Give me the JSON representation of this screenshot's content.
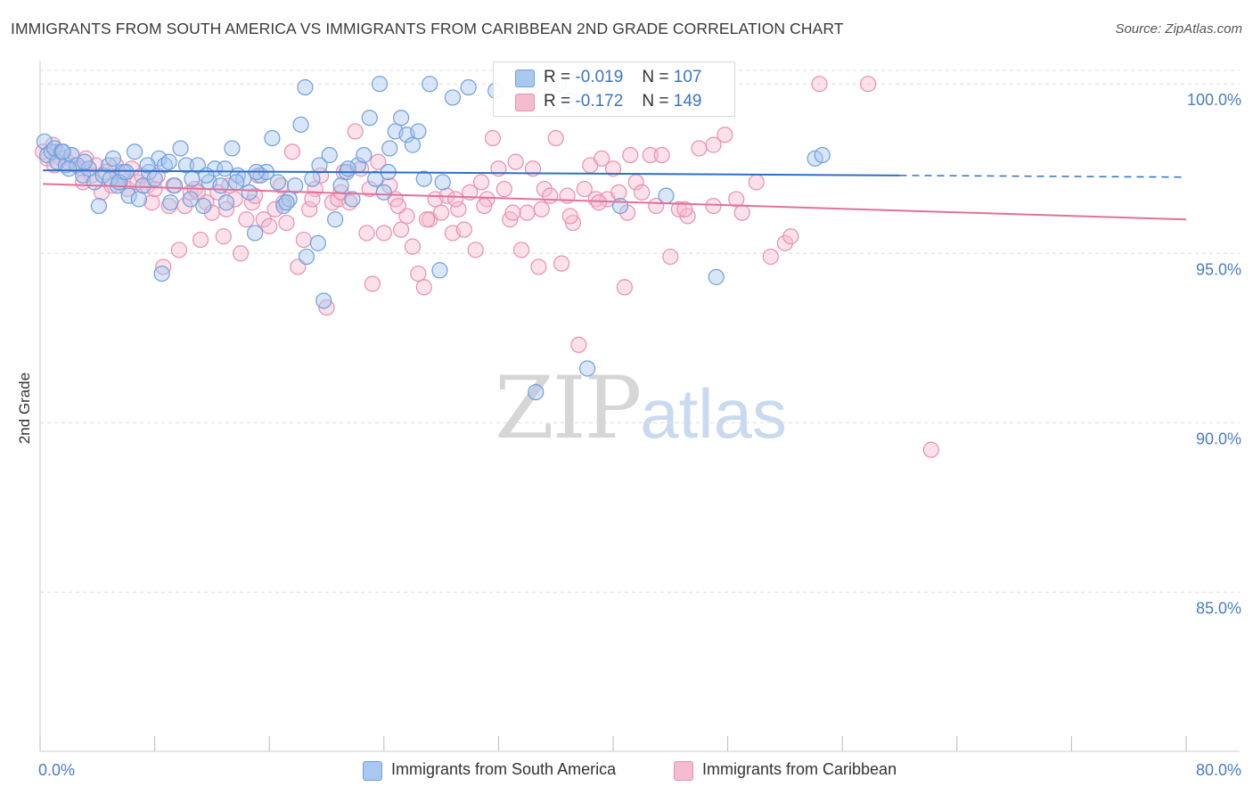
{
  "title": "IMMIGRANTS FROM SOUTH AMERICA VS IMMIGRANTS FROM CARIBBEAN 2ND GRADE CORRELATION CHART",
  "source": "Source: ZipAtlas.com",
  "watermark": {
    "zip": "ZIP",
    "atlas": "atlas"
  },
  "legend": {
    "series1": {
      "label": "Immigrants from South America",
      "r_label": "R =",
      "r_value": "-0.019",
      "n_label": "N =",
      "n_value": "107"
    },
    "series2": {
      "label": "Immigrants from Caribbean",
      "r_label": "R =",
      "r_value": "-0.172",
      "n_label": "N =",
      "n_value": "149"
    }
  },
  "colors": {
    "series1_fill": "#a9c8ef",
    "series1_stroke": "#6f9fdc",
    "series1_line": "#2f6fc9",
    "series2_fill": "#f5bcd0",
    "series2_stroke": "#ea8fb0",
    "series2_line": "#e2719a",
    "axis_text": "#4a7cc7",
    "grid": "#dcdcdc"
  },
  "chart_data": {
    "type": "scatter",
    "title": "IMMIGRANTS FROM SOUTH AMERICA VS IMMIGRANTS FROM CARIBBEAN 2ND GRADE CORRELATION CHART",
    "xlabel": "",
    "ylabel": "2nd Grade",
    "xlim": [
      0,
      80
    ],
    "ylim": [
      80.3,
      100.9
    ],
    "x_tick_labels": [
      "0.0%",
      "80.0%"
    ],
    "y_ticks": [
      85,
      90,
      95,
      100
    ],
    "y_tick_labels": [
      "85.0%",
      "90.0%",
      "95.0%",
      "100.0%"
    ],
    "grid": true,
    "legend_position": "top-center",
    "series": [
      {
        "name": "Immigrants from South America",
        "trend": {
          "x0": 0.2,
          "y0": 97.45,
          "x1": 60,
          "y1": 97.3,
          "dash_from": 60,
          "dash_to": 80,
          "dash_end_y": 97.25
        },
        "points": [
          [
            0.3,
            98.3
          ],
          [
            0.5,
            97.9
          ],
          [
            0.8,
            98.0
          ],
          [
            1.0,
            98.1
          ],
          [
            1.2,
            97.7
          ],
          [
            1.5,
            98.0
          ],
          [
            1.8,
            97.6
          ],
          [
            2.2,
            97.9
          ],
          [
            2.6,
            97.6
          ],
          [
            3.0,
            97.3
          ],
          [
            3.4,
            97.5
          ],
          [
            3.8,
            97.1
          ],
          [
            4.1,
            96.4
          ],
          [
            4.4,
            97.3
          ],
          [
            4.8,
            97.6
          ],
          [
            5.1,
            97.8
          ],
          [
            5.4,
            97.0
          ],
          [
            5.8,
            97.4
          ],
          [
            6.2,
            96.7
          ],
          [
            6.6,
            98.0
          ],
          [
            6.9,
            96.6
          ],
          [
            7.2,
            97.0
          ],
          [
            7.6,
            97.4
          ],
          [
            8.0,
            97.2
          ],
          [
            8.3,
            97.8
          ],
          [
            8.7,
            97.6
          ],
          [
            9.1,
            96.5
          ],
          [
            9.4,
            97.0
          ],
          [
            9.8,
            98.1
          ],
          [
            10.2,
            97.6
          ],
          [
            10.6,
            97.2
          ],
          [
            11.0,
            97.6
          ],
          [
            11.4,
            96.4
          ],
          [
            11.8,
            97.1
          ],
          [
            12.2,
            97.5
          ],
          [
            12.6,
            97.0
          ],
          [
            13.0,
            96.5
          ],
          [
            13.4,
            98.1
          ],
          [
            13.8,
            97.3
          ],
          [
            14.2,
            97.2
          ],
          [
            14.6,
            96.8
          ],
          [
            15.0,
            95.6
          ],
          [
            15.4,
            97.3
          ],
          [
            15.8,
            97.4
          ],
          [
            16.2,
            98.4
          ],
          [
            16.6,
            97.1
          ],
          [
            17.0,
            96.4
          ],
          [
            17.4,
            96.6
          ],
          [
            17.8,
            97.0
          ],
          [
            18.2,
            98.8
          ],
          [
            18.6,
            94.9
          ],
          [
            19.0,
            97.2
          ],
          [
            19.4,
            95.3
          ],
          [
            19.8,
            93.6
          ],
          [
            20.2,
            97.9
          ],
          [
            20.6,
            96.0
          ],
          [
            21.0,
            97.0
          ],
          [
            21.4,
            97.4
          ],
          [
            21.8,
            96.6
          ],
          [
            22.2,
            97.6
          ],
          [
            22.6,
            97.9
          ],
          [
            23.0,
            99.0
          ],
          [
            23.4,
            97.2
          ],
          [
            24.0,
            96.8
          ],
          [
            24.4,
            98.1
          ],
          [
            24.8,
            98.6
          ],
          [
            25.2,
            99.0
          ],
          [
            25.6,
            98.5
          ],
          [
            26.0,
            98.2
          ],
          [
            26.4,
            98.6
          ],
          [
            18.5,
            99.9
          ],
          [
            23.7,
            100.0
          ],
          [
            27.2,
            100.0
          ],
          [
            28.8,
            99.6
          ],
          [
            29.9,
            99.9
          ],
          [
            31.8,
            99.8
          ],
          [
            34.4,
            99.9
          ],
          [
            36.2,
            100.0
          ],
          [
            37.0,
            99.5
          ],
          [
            8.5,
            94.4
          ],
          [
            27.9,
            94.5
          ],
          [
            34.6,
            90.9
          ],
          [
            38.2,
            91.6
          ],
          [
            40.5,
            96.4
          ],
          [
            43.7,
            96.7
          ],
          [
            47.2,
            94.3
          ],
          [
            54.1,
            97.8
          ],
          [
            54.6,
            97.9
          ],
          [
            2.0,
            97.5
          ],
          [
            4.9,
            97.2
          ],
          [
            7.5,
            97.6
          ],
          [
            10.5,
            96.6
          ],
          [
            12.9,
            97.5
          ],
          [
            15.1,
            97.4
          ],
          [
            17.2,
            96.5
          ],
          [
            19.5,
            97.6
          ],
          [
            21.5,
            97.5
          ],
          [
            24.3,
            97.4
          ],
          [
            26.8,
            97.2
          ],
          [
            28.1,
            97.1
          ],
          [
            1.6,
            98.0
          ],
          [
            3.1,
            97.7
          ],
          [
            5.5,
            97.1
          ],
          [
            6.0,
            97.4
          ],
          [
            9.0,
            97.7
          ],
          [
            11.6,
            97.3
          ],
          [
            13.7,
            97.1
          ]
        ]
      },
      {
        "name": "Immigrants from Caribbean",
        "trend": {
          "x0": 0.2,
          "y0": 97.05,
          "x1": 80,
          "y1": 96.0
        },
        "points": [
          [
            0.2,
            98.0
          ],
          [
            0.5,
            97.8
          ],
          [
            0.9,
            98.2
          ],
          [
            1.2,
            98.0
          ],
          [
            1.5,
            97.8
          ],
          [
            1.9,
            97.7
          ],
          [
            2.2,
            97.9
          ],
          [
            2.5,
            97.6
          ],
          [
            2.9,
            97.5
          ],
          [
            3.2,
            97.8
          ],
          [
            3.6,
            97.3
          ],
          [
            3.9,
            97.6
          ],
          [
            4.3,
            96.8
          ],
          [
            4.6,
            97.4
          ],
          [
            5.0,
            97.0
          ],
          [
            5.3,
            97.6
          ],
          [
            5.7,
            97.3
          ],
          [
            6.1,
            96.9
          ],
          [
            6.4,
            97.5
          ],
          [
            6.8,
            97.1
          ],
          [
            7.1,
            97.3
          ],
          [
            7.5,
            97.0
          ],
          [
            7.8,
            96.5
          ],
          [
            8.2,
            97.3
          ],
          [
            8.6,
            94.6
          ],
          [
            9.0,
            96.4
          ],
          [
            9.3,
            97.0
          ],
          [
            9.7,
            95.1
          ],
          [
            10.1,
            96.4
          ],
          [
            10.5,
            96.8
          ],
          [
            10.8,
            96.9
          ],
          [
            11.2,
            95.4
          ],
          [
            11.6,
            96.5
          ],
          [
            12.0,
            96.2
          ],
          [
            12.4,
            96.8
          ],
          [
            12.8,
            95.5
          ],
          [
            13.2,
            97.0
          ],
          [
            13.6,
            96.6
          ],
          [
            14.0,
            95.0
          ],
          [
            14.4,
            96.0
          ],
          [
            14.8,
            96.5
          ],
          [
            15.2,
            97.3
          ],
          [
            15.6,
            96.0
          ],
          [
            16.0,
            95.8
          ],
          [
            16.4,
            96.3
          ],
          [
            16.8,
            97.0
          ],
          [
            17.2,
            95.9
          ],
          [
            17.6,
            98.0
          ],
          [
            18.0,
            94.6
          ],
          [
            18.4,
            95.4
          ],
          [
            18.8,
            96.3
          ],
          [
            19.2,
            96.9
          ],
          [
            19.6,
            97.3
          ],
          [
            20.0,
            93.4
          ],
          [
            20.4,
            96.5
          ],
          [
            20.8,
            96.6
          ],
          [
            21.2,
            97.4
          ],
          [
            21.6,
            96.5
          ],
          [
            22.0,
            98.6
          ],
          [
            22.4,
            97.5
          ],
          [
            22.8,
            95.6
          ],
          [
            23.2,
            94.1
          ],
          [
            23.6,
            97.7
          ],
          [
            24.0,
            95.6
          ],
          [
            24.4,
            97.0
          ],
          [
            24.8,
            96.6
          ],
          [
            25.2,
            95.7
          ],
          [
            25.6,
            96.1
          ],
          [
            26.0,
            95.2
          ],
          [
            26.4,
            94.4
          ],
          [
            26.8,
            94.0
          ],
          [
            27.2,
            96.0
          ],
          [
            27.6,
            96.6
          ],
          [
            28.0,
            96.2
          ],
          [
            28.4,
            96.7
          ],
          [
            28.8,
            95.6
          ],
          [
            29.2,
            96.3
          ],
          [
            29.6,
            95.7
          ],
          [
            30.0,
            96.8
          ],
          [
            30.4,
            95.1
          ],
          [
            30.8,
            97.1
          ],
          [
            31.2,
            96.6
          ],
          [
            31.6,
            98.4
          ],
          [
            32.0,
            97.5
          ],
          [
            32.4,
            96.9
          ],
          [
            32.8,
            96.0
          ],
          [
            33.2,
            97.7
          ],
          [
            33.6,
            95.1
          ],
          [
            34.0,
            96.2
          ],
          [
            34.4,
            97.5
          ],
          [
            34.8,
            94.6
          ],
          [
            35.2,
            96.9
          ],
          [
            35.6,
            96.7
          ],
          [
            36.0,
            98.4
          ],
          [
            36.4,
            94.7
          ],
          [
            36.8,
            96.7
          ],
          [
            37.2,
            95.9
          ],
          [
            37.6,
            92.3
          ],
          [
            38.0,
            96.9
          ],
          [
            38.4,
            97.6
          ],
          [
            38.8,
            96.6
          ],
          [
            39.2,
            97.8
          ],
          [
            39.6,
            96.6
          ],
          [
            40.0,
            97.5
          ],
          [
            40.4,
            96.8
          ],
          [
            40.8,
            94.0
          ],
          [
            41.2,
            97.9
          ],
          [
            41.6,
            97.1
          ],
          [
            42.0,
            96.8
          ],
          [
            42.6,
            97.9
          ],
          [
            43.4,
            97.9
          ],
          [
            44.6,
            96.3
          ],
          [
            45.2,
            96.1
          ],
          [
            46.0,
            98.1
          ],
          [
            47.0,
            98.2
          ],
          [
            47.8,
            98.5
          ],
          [
            48.6,
            96.6
          ],
          [
            51.0,
            94.9
          ],
          [
            52.0,
            95.3
          ],
          [
            52.4,
            95.5
          ],
          [
            54.4,
            100.0
          ],
          [
            57.8,
            100.0
          ],
          [
            62.2,
            89.2
          ],
          [
            1.0,
            97.6
          ],
          [
            3.0,
            97.1
          ],
          [
            5.6,
            97.1
          ],
          [
            8.0,
            96.9
          ],
          [
            11.0,
            96.8
          ],
          [
            13.0,
            96.3
          ],
          [
            15.0,
            96.7
          ],
          [
            17.0,
            96.5
          ],
          [
            19.0,
            96.6
          ],
          [
            21.0,
            96.8
          ],
          [
            23.0,
            96.9
          ],
          [
            25.0,
            96.4
          ],
          [
            27.0,
            96.0
          ],
          [
            29.0,
            96.6
          ],
          [
            31.0,
            96.4
          ],
          [
            33.0,
            96.2
          ],
          [
            35.0,
            96.3
          ],
          [
            37.0,
            96.1
          ],
          [
            39.0,
            96.5
          ],
          [
            41.0,
            96.2
          ],
          [
            43.0,
            96.4
          ],
          [
            45.0,
            96.3
          ],
          [
            47.0,
            96.4
          ],
          [
            49.0,
            96.2
          ],
          [
            50.0,
            97.1
          ],
          [
            44.0,
            94.9
          ]
        ]
      }
    ]
  }
}
